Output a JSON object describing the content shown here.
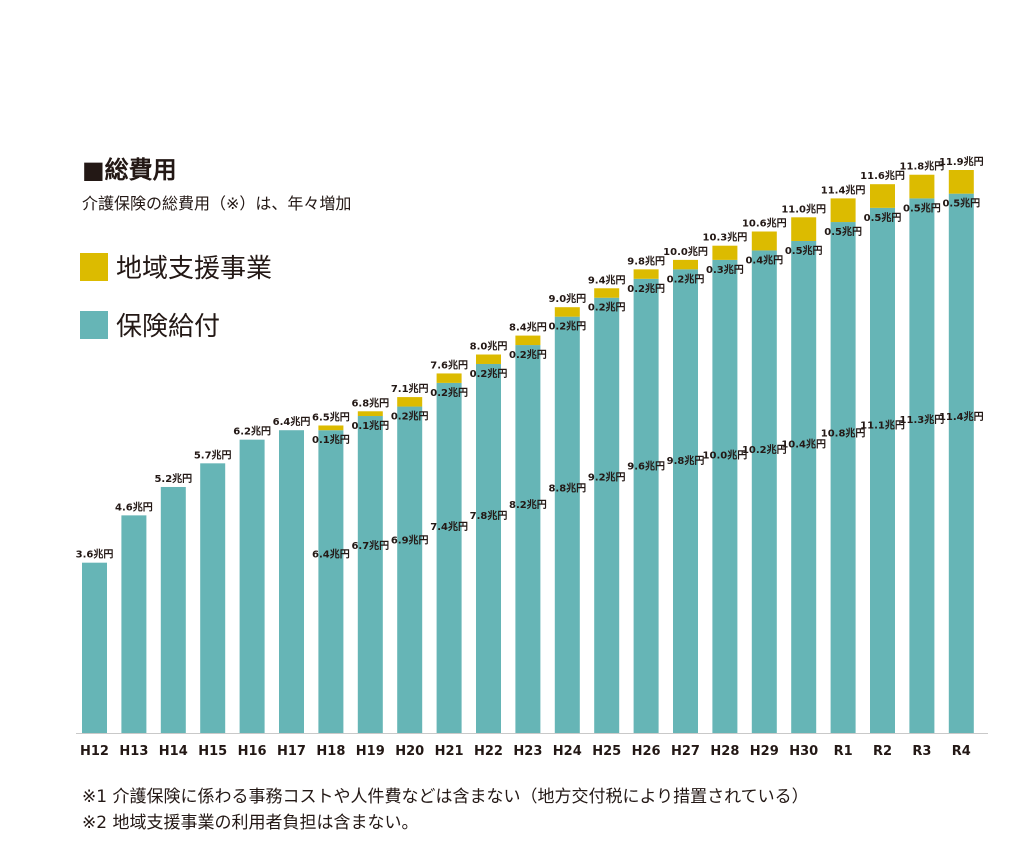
{
  "chart_data": {
    "type": "bar",
    "title": "■総費用",
    "subtitle": "介護保険の総費用（※）は、年々増加",
    "categories": [
      "H12",
      "H13",
      "H14",
      "H15",
      "H16",
      "H17",
      "H18",
      "H19",
      "H20",
      "H21",
      "H22",
      "H23",
      "H24",
      "H25",
      "H26",
      "H27",
      "H28",
      "H29",
      "H30",
      "R1",
      "R2",
      "R3",
      "R4"
    ],
    "series": [
      {
        "name": "保険給付",
        "color": "#66b5b6",
        "values": [
          3.6,
          4.6,
          5.2,
          5.7,
          6.2,
          6.4,
          6.4,
          6.7,
          6.9,
          7.4,
          7.8,
          8.2,
          8.8,
          9.2,
          9.6,
          9.8,
          10.0,
          10.2,
          10.4,
          10.8,
          11.1,
          11.3,
          11.4
        ],
        "labels": [
          null,
          null,
          null,
          null,
          null,
          null,
          "6.4兆円",
          "6.7兆円",
          "6.9兆円",
          "7.4兆円",
          "7.8兆円",
          "8.2兆円",
          "8.8兆円",
          "9.2兆円",
          "9.6兆円",
          "9.8兆円",
          "10.0兆円",
          "10.2兆円",
          "10.4兆円",
          "10.8兆円",
          "11.1兆円",
          "11.3兆円",
          "11.4兆円"
        ]
      },
      {
        "name": "地域支援事業",
        "color": "#dcbb00",
        "values": [
          0,
          0,
          0,
          0,
          0,
          0,
          0.1,
          0.1,
          0.2,
          0.2,
          0.2,
          0.2,
          0.2,
          0.2,
          0.2,
          0.2,
          0.3,
          0.4,
          0.5,
          0.5,
          0.5,
          0.5,
          0.5
        ],
        "labels": [
          null,
          null,
          null,
          null,
          null,
          null,
          "0.1兆円",
          "0.1兆円",
          "0.2兆円",
          "0.2兆円",
          "0.2兆円",
          "0.2兆円",
          "0.2兆円",
          "0.2兆円",
          "0.2兆円",
          "0.2兆円",
          "0.3兆円",
          "0.4兆円",
          "0.5兆円",
          "0.5兆円",
          "0.5兆円",
          "0.5兆円",
          "0.5兆円"
        ]
      }
    ],
    "totals": [
      3.6,
      4.6,
      5.2,
      5.7,
      6.2,
      6.4,
      6.5,
      6.8,
      7.1,
      7.6,
      8.0,
      8.4,
      9.0,
      9.4,
      9.8,
      10.0,
      10.3,
      10.6,
      11.0,
      11.4,
      11.6,
      11.8,
      11.9
    ],
    "total_labels": [
      "3.6兆円",
      "4.6兆円",
      "5.2兆円",
      "5.7兆円",
      "6.2兆円",
      "6.4兆円",
      "6.5兆円",
      "6.8兆円",
      "7.1兆円",
      "7.6兆円",
      "8.0兆円",
      "8.4兆円",
      "9.0兆円",
      "9.4兆円",
      "9.8兆円",
      "10.0兆円",
      "10.3兆円",
      "10.6兆円",
      "11.0兆円",
      "11.4兆円",
      "11.6兆円",
      "11.8兆円",
      "11.9兆円"
    ],
    "ylim": [
      0,
      12
    ],
    "xlabel": "",
    "ylabel": "",
    "grid": false
  },
  "legend": [
    {
      "label": "地域支援事業",
      "color": "#dcbb00"
    },
    {
      "label": "保険給付",
      "color": "#66b5b6"
    }
  ],
  "notes": [
    "※1 介護保険に係わる事務コストや人件費などは含まない（地方交付税により措置されている）",
    "※2 地域支援事業の利用者負担は含まない。"
  ]
}
